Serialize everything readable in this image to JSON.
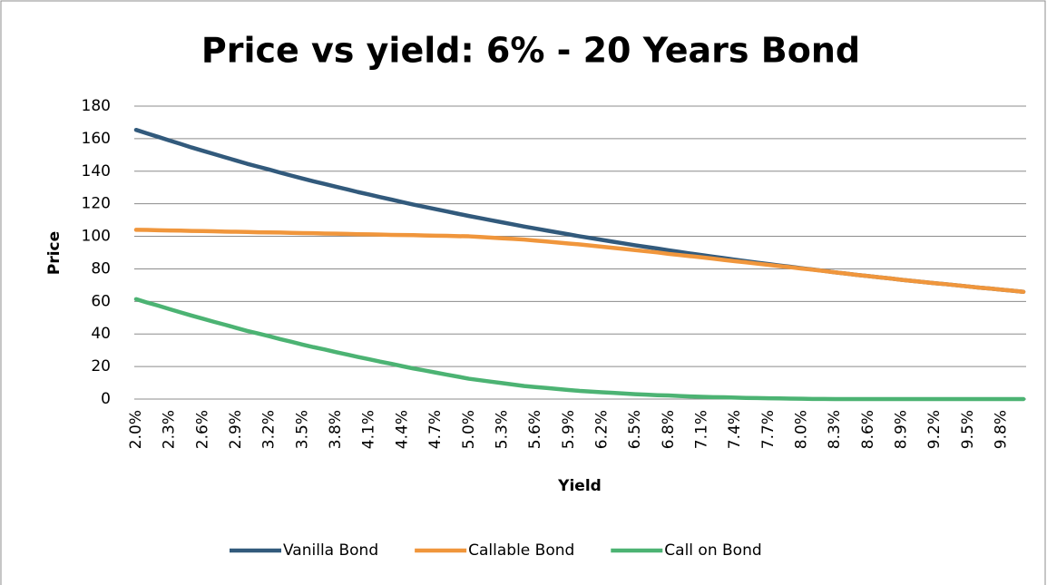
{
  "chart_data": {
    "type": "line",
    "title": "Price vs yield: 6% - 20 Years Bond",
    "x_label": "Yield",
    "y_label": "Price",
    "categories": [
      "2.0%",
      null,
      null,
      "2.3%",
      null,
      null,
      "2.6%",
      null,
      null,
      "2.9%",
      null,
      null,
      "3.2%",
      null,
      null,
      "3.5%",
      null,
      null,
      "3.8%",
      null,
      null,
      "4.1%",
      null,
      null,
      "4.4%",
      null,
      null,
      "4.7%",
      null,
      null,
      "5.0%",
      null,
      null,
      "5.3%",
      null,
      null,
      "5.6%",
      null,
      null,
      "5.9%",
      null,
      null,
      "6.2%",
      null,
      null,
      "6.5%",
      null,
      null,
      "6.8%",
      null,
      null,
      "7.1%",
      null,
      null,
      "7.4%",
      null,
      null,
      "7.7%",
      null,
      null,
      "8.0%",
      null,
      null,
      "8.3%",
      null,
      null,
      "8.6%",
      null,
      null,
      "8.9%",
      null,
      null,
      "9.2%",
      null,
      null,
      "9.5%",
      null,
      null,
      "9.8%",
      null,
      null
    ],
    "series": [
      {
        "name": "Vanilla Bond",
        "color": "#325a7c",
        "values": [
          165.4,
          163.2,
          161.1,
          158.9,
          156.8,
          154.6,
          152.6,
          150.6,
          148.6,
          146.6,
          144.6,
          142.8,
          141.0,
          139.1,
          137.3,
          135.5,
          133.8,
          132.2,
          130.5,
          128.9,
          127.2,
          125.7,
          124.1,
          122.6,
          121.0,
          119.5,
          118.1,
          116.7,
          115.3,
          113.9,
          112.5,
          111.2,
          109.9,
          108.6,
          107.3,
          106.0,
          104.8,
          103.6,
          102.4,
          101.2,
          100.0,
          98.9,
          97.8,
          96.7,
          95.6,
          94.5,
          93.5,
          92.5,
          91.4,
          90.4,
          89.4,
          88.5,
          87.5,
          86.6,
          85.6,
          84.7,
          83.8,
          83.0,
          82.1,
          81.3,
          80.4,
          79.6,
          78.8,
          77.9,
          77.1,
          76.3,
          75.6,
          74.8,
          74.1,
          73.3,
          72.6,
          71.9,
          71.2,
          70.6,
          69.9,
          69.2,
          68.5,
          67.9,
          67.2,
          66.6,
          65.9
        ]
      },
      {
        "name": "Callable Bond",
        "color": "#f0963c",
        "values": [
          104.0,
          103.9,
          103.7,
          103.6,
          103.5,
          103.3,
          103.2,
          103.1,
          102.9,
          102.8,
          102.7,
          102.5,
          102.4,
          102.3,
          102.1,
          102.0,
          101.9,
          101.7,
          101.6,
          101.5,
          101.3,
          101.2,
          101.1,
          100.9,
          100.8,
          100.7,
          100.5,
          100.4,
          100.3,
          100.1,
          100.0,
          99.6,
          99.2,
          98.8,
          98.4,
          98.0,
          97.4,
          96.8,
          96.2,
          95.6,
          95.0,
          94.3,
          93.6,
          92.9,
          92.2,
          91.5,
          90.8,
          90.1,
          89.2,
          88.5,
          87.8,
          87.1,
          86.3,
          85.5,
          84.7,
          84.0,
          83.2,
          82.5,
          81.7,
          81.0,
          80.2,
          79.5,
          78.7,
          77.9,
          77.1,
          76.3,
          75.6,
          74.8,
          74.1,
          73.3,
          72.6,
          71.9,
          71.2,
          70.6,
          69.9,
          69.2,
          68.5,
          67.9,
          67.2,
          66.6,
          65.9
        ]
      },
      {
        "name": "Call on Bond",
        "color": "#4cb373",
        "values": [
          61.4,
          59.3,
          57.4,
          55.3,
          53.3,
          51.3,
          49.4,
          47.5,
          45.7,
          43.8,
          41.9,
          40.3,
          38.6,
          36.8,
          35.2,
          33.5,
          31.9,
          30.5,
          28.9,
          27.4,
          25.9,
          24.5,
          23.0,
          21.7,
          20.2,
          18.8,
          17.6,
          16.3,
          15.0,
          13.8,
          12.5,
          11.6,
          10.7,
          9.8,
          8.9,
          8.0,
          7.4,
          6.8,
          6.2,
          5.6,
          5.0,
          4.6,
          4.2,
          3.8,
          3.4,
          3.0,
          2.7,
          2.4,
          2.2,
          1.9,
          1.6,
          1.4,
          1.2,
          1.1,
          0.9,
          0.7,
          0.6,
          0.5,
          0.4,
          0.3,
          0.2,
          0.1,
          0.1,
          0,
          0,
          0,
          0,
          0,
          0,
          0,
          0,
          0,
          0,
          0,
          0,
          0,
          0,
          0,
          0,
          0,
          0
        ]
      }
    ],
    "ylim": [
      0,
      180
    ],
    "yticks": [
      0,
      20,
      40,
      60,
      80,
      100,
      120,
      140,
      160,
      180
    ],
    "grid": true,
    "legend": "bottom"
  }
}
